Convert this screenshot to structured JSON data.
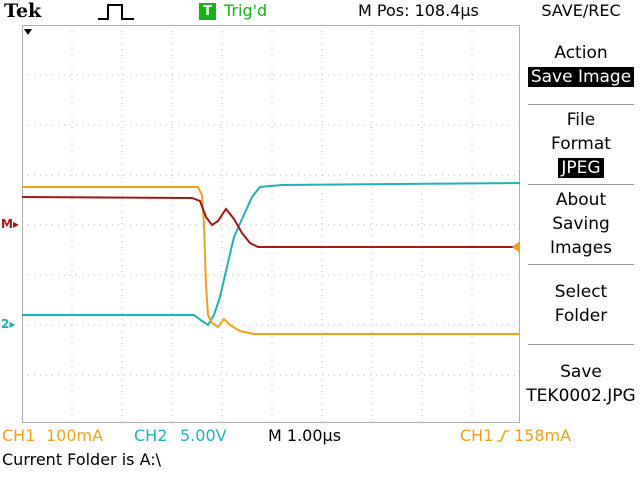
{
  "header": {
    "brand": "Tek",
    "trigger_badge": "T",
    "trigger_status": "Trig'd",
    "position_readout": "M Pos: 108.4µs",
    "menu_title": "SAVE/REC"
  },
  "menu": {
    "action_label": "Action",
    "action_value": "Save Image",
    "file_format_line1": "File",
    "file_format_line2": "Format",
    "file_format_value": "JPEG",
    "about_line1": "About",
    "about_line2": "Saving",
    "about_line3": "Images",
    "select_line1": "Select",
    "select_line2": "Folder",
    "save_line1": "Save",
    "save_filename": "TEK0002.JPG"
  },
  "status": {
    "ch1_label": "CH1",
    "ch1_scale": "100mA",
    "ch2_label": "CH2",
    "ch2_scale": "5.00V",
    "timebase": "M 1.00µs",
    "trigger_source": "CH1",
    "trigger_level": "158mA"
  },
  "footer": {
    "current_folder": "Current Folder is A:\\"
  },
  "markers": {
    "math_marker": "M",
    "ch2_marker": "2"
  },
  "colors": {
    "ch1": "#f0a020",
    "ch2": "#20b0b8",
    "math": "#a01818",
    "trigger": "#18b018"
  }
}
